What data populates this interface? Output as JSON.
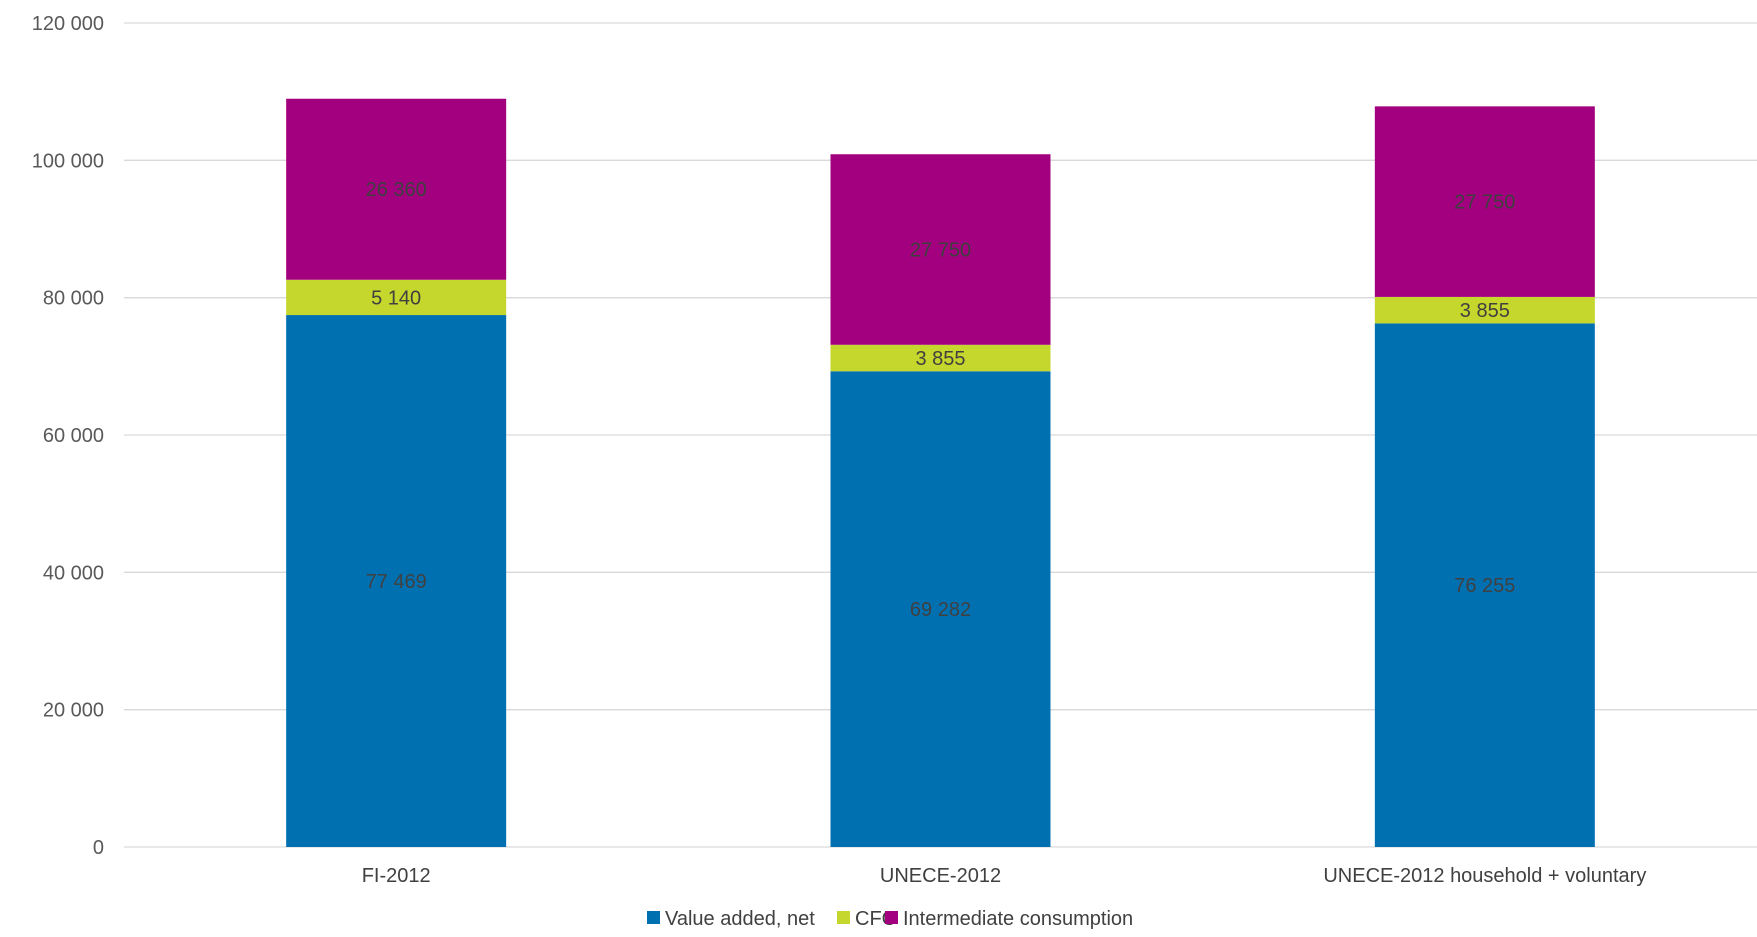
{
  "chart_data": {
    "type": "bar",
    "stacked": true,
    "categories": [
      "FI-2012",
      "UNECE-2012",
      "UNECE-2012 household + voluntary"
    ],
    "series": [
      {
        "name": "Value added, net",
        "values": [
          77469,
          69282,
          76255
        ],
        "labels": [
          "77 469",
          "69 282",
          "76 255"
        ],
        "color": "#0070b1"
      },
      {
        "name": "CFC",
        "values": [
          5140,
          3855,
          3855
        ],
        "labels": [
          "5 140",
          "3 855",
          "3 855"
        ],
        "color": "#c5d62c"
      },
      {
        "name": "Intermediate consumption",
        "values": [
          26360,
          27750,
          27750
        ],
        "labels": [
          "26 360",
          "27 750",
          "27 750"
        ],
        "color": "#a3007f"
      }
    ],
    "ylim": [
      0,
      120000
    ],
    "yticks": [
      0,
      20000,
      40000,
      60000,
      80000,
      100000,
      120000
    ],
    "ytick_labels": [
      "0",
      "20 000",
      "40 000",
      "60 000",
      "80 000",
      "100 000",
      "120 000"
    ],
    "grid": true,
    "legend_position": "bottom",
    "title": "",
    "xlabel": "",
    "ylabel": ""
  }
}
